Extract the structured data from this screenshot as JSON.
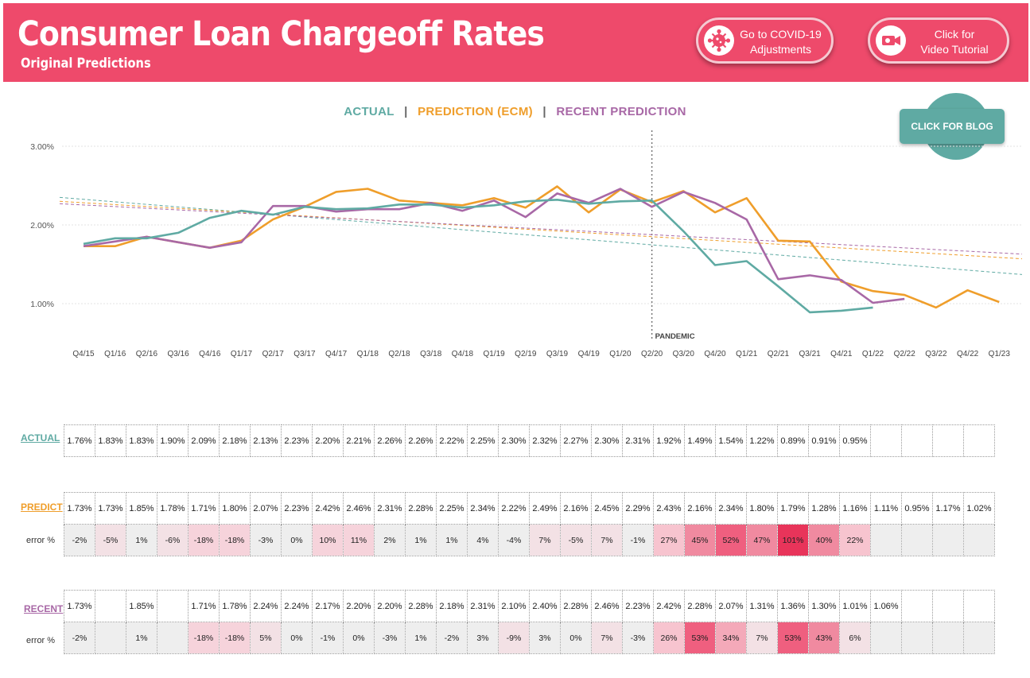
{
  "header": {
    "title": "Consumer Loan Chargeoff Rates",
    "subtitle": "Original Predictions",
    "covid_button": "Go to COVID-19 Adjustments",
    "covid_button_line1": "Go to COVID-19",
    "covid_button_line2": "Adjustments",
    "video_button_line1": "Click for",
    "video_button_line2": "Video Tutorial",
    "covid_icon": "virus-icon",
    "video_icon": "video-camera-icon"
  },
  "blog_button": "CLICK FOR BLOG",
  "legend": {
    "actual": "ACTUAL",
    "prediction": "PREDICTION (ECM)",
    "recent": "RECENT PREDICTION",
    "separator": "|"
  },
  "colors": {
    "header": "#ee4a6b",
    "actual": "#5faaa3",
    "prediction": "#ef9e2b",
    "recent": "#a868a6",
    "blog": "#5faaa3"
  },
  "chart_data": {
    "type": "line",
    "categories": [
      "Q4/15",
      "Q1/16",
      "Q2/16",
      "Q3/16",
      "Q4/16",
      "Q1/17",
      "Q2/17",
      "Q3/17",
      "Q4/17",
      "Q1/18",
      "Q2/18",
      "Q3/18",
      "Q4/18",
      "Q1/19",
      "Q2/19",
      "Q3/19",
      "Q4/19",
      "Q1/20",
      "Q2/20",
      "Q3/20",
      "Q4/20",
      "Q1/21",
      "Q2/21",
      "Q3/21",
      "Q4/21",
      "Q1/22",
      "Q2/22",
      "Q3/22",
      "Q4/22",
      "Q1/23"
    ],
    "series": [
      {
        "name": "ACTUAL",
        "values": [
          1.76,
          1.83,
          1.83,
          1.9,
          2.09,
          2.18,
          2.13,
          2.23,
          2.2,
          2.21,
          2.26,
          2.26,
          2.22,
          2.25,
          2.3,
          2.32,
          2.27,
          2.3,
          2.31,
          1.92,
          1.49,
          1.54,
          1.22,
          0.89,
          0.91,
          0.95,
          null,
          null,
          null,
          null
        ]
      },
      {
        "name": "PREDICTION (ECM)",
        "values": [
          1.73,
          1.73,
          1.85,
          1.78,
          1.71,
          1.8,
          2.07,
          2.23,
          2.42,
          2.46,
          2.31,
          2.28,
          2.25,
          2.34,
          2.22,
          2.49,
          2.16,
          2.45,
          2.29,
          2.43,
          2.16,
          2.34,
          1.8,
          1.79,
          1.28,
          1.16,
          1.11,
          0.95,
          1.17,
          1.02
        ]
      },
      {
        "name": "RECENT PREDICTION",
        "values": [
          1.73,
          1.79,
          1.85,
          1.78,
          1.71,
          1.78,
          2.24,
          2.24,
          2.17,
          2.2,
          2.2,
          2.28,
          2.18,
          2.31,
          2.1,
          2.4,
          2.28,
          2.46,
          2.23,
          2.42,
          2.28,
          2.07,
          1.31,
          1.36,
          1.3,
          1.01,
          1.06,
          null,
          null,
          null
        ]
      }
    ],
    "trendlines": [
      {
        "series": "ACTUAL",
        "start": 2.35,
        "end": 1.37
      },
      {
        "series": "PREDICTION (ECM)",
        "start": 2.3,
        "end": 1.57
      },
      {
        "series": "RECENT PREDICTION",
        "start": 2.27,
        "end": 1.63
      }
    ],
    "yticks": [
      "1.00%",
      "2.00%",
      "3.00%"
    ],
    "ytick_values": [
      1.0,
      2.0,
      3.0
    ],
    "ylim": [
      0.55,
      3.1
    ],
    "annotation": {
      "label": "PANDEMIC",
      "at": "Q2/20"
    },
    "grid": true
  },
  "tables": {
    "actual": {
      "label": "ACTUAL",
      "values": [
        "1.76%",
        "1.83%",
        "1.83%",
        "1.90%",
        "2.09%",
        "2.18%",
        "2.13%",
        "2.23%",
        "2.20%",
        "2.21%",
        "2.26%",
        "2.26%",
        "2.22%",
        "2.25%",
        "2.30%",
        "2.32%",
        "2.27%",
        "2.30%",
        "2.31%",
        "1.92%",
        "1.49%",
        "1.54%",
        "1.22%",
        "0.89%",
        "0.91%",
        "0.95%",
        "",
        "",
        "",
        ""
      ]
    },
    "predict": {
      "label": "PREDICT",
      "error_label": "error %",
      "values": [
        "1.73%",
        "1.73%",
        "1.85%",
        "1.78%",
        "1.71%",
        "1.80%",
        "2.07%",
        "2.23%",
        "2.42%",
        "2.46%",
        "2.31%",
        "2.28%",
        "2.25%",
        "2.34%",
        "2.22%",
        "2.49%",
        "2.16%",
        "2.45%",
        "2.29%",
        "2.43%",
        "2.16%",
        "2.34%",
        "1.80%",
        "1.79%",
        "1.28%",
        "1.16%",
        "1.11%",
        "0.95%",
        "1.17%",
        "1.02%"
      ],
      "errors": [
        "-2%",
        "-5%",
        "1%",
        "-6%",
        "-18%",
        "-18%",
        "-3%",
        "0%",
        "10%",
        "11%",
        "2%",
        "1%",
        "1%",
        "4%",
        "-4%",
        "7%",
        "-5%",
        "7%",
        "-1%",
        "27%",
        "45%",
        "52%",
        "47%",
        "101%",
        "40%",
        "22%",
        "",
        "",
        "",
        ""
      ]
    },
    "recent": {
      "label": "RECENT",
      "error_label": "error %",
      "values": [
        "1.73%",
        "",
        "1.85%",
        "",
        "1.71%",
        "1.78%",
        "2.24%",
        "2.24%",
        "2.17%",
        "2.20%",
        "2.20%",
        "2.28%",
        "2.18%",
        "2.31%",
        "2.10%",
        "2.40%",
        "2.28%",
        "2.46%",
        "2.23%",
        "2.42%",
        "2.28%",
        "2.07%",
        "1.31%",
        "1.36%",
        "1.30%",
        "1.01%",
        "1.06%",
        "",
        "",
        ""
      ],
      "errors": [
        "-2%",
        "",
        "1%",
        "",
        "-18%",
        "-18%",
        "5%",
        "0%",
        "-1%",
        "0%",
        "-3%",
        "1%",
        "-2%",
        "3%",
        "-9%",
        "3%",
        "0%",
        "7%",
        "-3%",
        "26%",
        "53%",
        "34%",
        "7%",
        "53%",
        "43%",
        "6%",
        "",
        "",
        "",
        ""
      ]
    }
  }
}
